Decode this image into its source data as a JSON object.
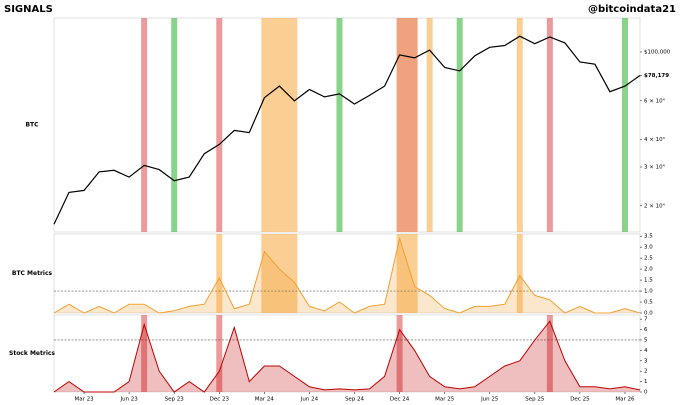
{
  "header": {
    "title": "SIGNALS",
    "handle": "@bitcoindata21"
  },
  "chart_data": [
    {
      "type": "line",
      "ylabel": "BTC",
      "log_scale": true,
      "color": "#000000",
      "label_color": "#000000",
      "xlim": [
        "2023-01",
        "2026-04"
      ],
      "ylim": [
        15200,
        142700
      ],
      "x": [
        "2023-01",
        "2023-02",
        "2023-03",
        "2023-04",
        "2023-05",
        "2023-06",
        "2023-07",
        "2023-08",
        "2023-09",
        "2023-10",
        "2023-11",
        "2023-12",
        "2024-01",
        "2024-02",
        "2024-03",
        "2024-04",
        "2024-05",
        "2024-06",
        "2024-07",
        "2024-08",
        "2024-09",
        "2024-10",
        "2024-11",
        "2024-12",
        "2025-01",
        "2025-02",
        "2025-03",
        "2025-04",
        "2025-05",
        "2025-06",
        "2025-07",
        "2025-08",
        "2025-09",
        "2025-10",
        "2025-11",
        "2025-12",
        "2026-01",
        "2026-02",
        "2026-03",
        "2026-04"
      ],
      "values": [
        16500,
        23000,
        23500,
        28500,
        29000,
        27000,
        30500,
        29200,
        26000,
        27000,
        34500,
        38000,
        44000,
        43000,
        62000,
        70000,
        60000,
        67500,
        62500,
        64500,
        58000,
        63500,
        70000,
        97000,
        94000,
        102000,
        85000,
        82000,
        96000,
        105000,
        107000,
        118000,
        109000,
        117000,
        110000,
        90000,
        88000,
        66000,
        70000,
        78179
      ],
      "yticks": [
        {
          "value": 20000,
          "label": "2 × 10⁴"
        },
        {
          "value": 30000,
          "label": "3 × 10⁴"
        },
        {
          "value": 40000,
          "label": "4 × 10⁴"
        },
        {
          "value": 60000,
          "label": "6 × 10⁴"
        },
        {
          "value": 100000,
          "label": "$100,000"
        }
      ],
      "last_label": {
        "value": 78179,
        "label": "$78,179"
      },
      "bands": [
        {
          "start": "2023-07",
          "end": "2023-07",
          "color": "#e06666"
        },
        {
          "start": "2023-09",
          "end": "2023-09",
          "color": "#4cbb4c"
        },
        {
          "start": "2023-12",
          "end": "2023-12",
          "color": "#e06666"
        },
        {
          "start": "2024-03",
          "end": "2024-05",
          "color": "#f9b45a"
        },
        {
          "start": "2024-08",
          "end": "2024-08",
          "color": "#4cbb4c"
        },
        {
          "start": "2024-12",
          "end": "2025-01",
          "color": "#e8703a"
        },
        {
          "start": "2025-02",
          "end": "2025-02",
          "color": "#f9b45a"
        },
        {
          "start": "2025-04",
          "end": "2025-04",
          "color": "#4cbb4c"
        },
        {
          "start": "2025-08",
          "end": "2025-08",
          "color": "#f9b45a"
        },
        {
          "start": "2025-10",
          "end": "2025-10",
          "color": "#e06666"
        },
        {
          "start": "2026-03",
          "end": "2026-03",
          "color": "#4cbb4c"
        }
      ]
    },
    {
      "type": "area",
      "ylabel": "BTC Metrics",
      "color": "#f0a030",
      "label_color": "#f08c00",
      "xlim": [
        "2023-01",
        "2026-04"
      ],
      "ylim": [
        0,
        3.6
      ],
      "threshold": 1,
      "x": [
        "2023-01",
        "2023-02",
        "2023-03",
        "2023-04",
        "2023-05",
        "2023-06",
        "2023-07",
        "2023-08",
        "2023-09",
        "2023-10",
        "2023-11",
        "2023-12",
        "2024-01",
        "2024-02",
        "2024-03",
        "2024-04",
        "2024-05",
        "2024-06",
        "2024-07",
        "2024-08",
        "2024-09",
        "2024-10",
        "2024-11",
        "2024-12",
        "2025-01",
        "2025-02",
        "2025-03",
        "2025-04",
        "2025-05",
        "2025-06",
        "2025-07",
        "2025-08",
        "2025-09",
        "2025-10",
        "2025-11",
        "2025-12",
        "2026-01",
        "2026-02",
        "2026-03",
        "2026-04"
      ],
      "values": [
        0,
        0.4,
        0,
        0.3,
        0,
        0.4,
        0.4,
        0,
        0.1,
        0.3,
        0.4,
        1.6,
        0.2,
        0.4,
        2.8,
        2,
        1.4,
        0.3,
        0.1,
        0.5,
        0,
        0.3,
        0.4,
        3.4,
        1.2,
        0.8,
        0.2,
        0,
        0.3,
        0.3,
        0.4,
        1.7,
        0.8,
        0.6,
        0,
        0.3,
        0,
        0,
        0.2,
        0
      ],
      "yticks": [
        {
          "value": 0,
          "label": "0.0"
        },
        0.5,
        {
          "value": 1,
          "label": "1.0"
        },
        1.5,
        {
          "value": 2,
          "label": "2.0"
        },
        2.5,
        {
          "value": 3,
          "label": "3.0"
        },
        3.5
      ],
      "bands": [
        {
          "start": "2023-12",
          "end": "2023-12",
          "color": "#f9b45a"
        },
        {
          "start": "2024-03",
          "end": "2024-05",
          "color": "#f9b45a"
        },
        {
          "start": "2024-12",
          "end": "2025-01",
          "color": "#f9b45a"
        },
        {
          "start": "2025-08",
          "end": "2025-08",
          "color": "#f9b45a"
        }
      ]
    },
    {
      "type": "area",
      "ylabel": "Stock Metrics",
      "color": "#c00000",
      "label_color": "#c00000",
      "xlim": [
        "2023-01",
        "2026-04"
      ],
      "ylim": [
        0,
        7.4
      ],
      "threshold": 5,
      "x": [
        "2023-01",
        "2023-02",
        "2023-03",
        "2023-04",
        "2023-05",
        "2023-06",
        "2023-07",
        "2023-08",
        "2023-09",
        "2023-10",
        "2023-11",
        "2023-12",
        "2024-01",
        "2024-02",
        "2024-03",
        "2024-04",
        "2024-05",
        "2024-06",
        "2024-07",
        "2024-08",
        "2024-09",
        "2024-10",
        "2024-11",
        "2024-12",
        "2025-01",
        "2025-02",
        "2025-03",
        "2025-04",
        "2025-05",
        "2025-06",
        "2025-07",
        "2025-08",
        "2025-09",
        "2025-10",
        "2025-11",
        "2025-12",
        "2026-01",
        "2026-02",
        "2026-03",
        "2026-04"
      ],
      "values": [
        0,
        1,
        0,
        0,
        0,
        1,
        6.5,
        2,
        0,
        1,
        0,
        2,
        6.2,
        1,
        2.5,
        2.5,
        1.5,
        0.5,
        0.2,
        0.3,
        0.2,
        0.3,
        1.5,
        6,
        4,
        1.5,
        0.5,
        0.3,
        0.5,
        1.5,
        2.5,
        3,
        5,
        6.8,
        3,
        0.5,
        0.5,
        0.3,
        0.5,
        0.2
      ],
      "yticks": [
        0,
        1,
        2,
        3,
        4,
        5,
        6,
        7
      ],
      "xticks": [
        {
          "value": "2023-03",
          "label": "Mar 23"
        },
        {
          "value": "2023-06",
          "label": "Jun 23"
        },
        {
          "value": "2023-09",
          "label": "Sep 23"
        },
        {
          "value": "2023-12",
          "label": "Dec 23"
        },
        {
          "value": "2024-03",
          "label": "Mar 24"
        },
        {
          "value": "2024-06",
          "label": "Jun 24"
        },
        {
          "value": "2024-09",
          "label": "Sep 24"
        },
        {
          "value": "2024-12",
          "label": "Dec 24"
        },
        {
          "value": "2025-03",
          "label": "Mar 25"
        },
        {
          "value": "2025-06",
          "label": "Jun 25"
        },
        {
          "value": "2025-09",
          "label": "Sep 25"
        },
        {
          "value": "2025-12",
          "label": "Dec 25"
        },
        {
          "value": "2026-03",
          "label": "Mar 26"
        }
      ],
      "bands": [
        {
          "start": "2023-07",
          "end": "2023-07",
          "color": "#e06666"
        },
        {
          "start": "2023-12",
          "end": "2023-12",
          "color": "#e06666"
        },
        {
          "start": "2024-12",
          "end": "2024-12",
          "color": "#e06666"
        },
        {
          "start": "2025-10",
          "end": "2025-10",
          "color": "#e06666"
        }
      ]
    }
  ]
}
